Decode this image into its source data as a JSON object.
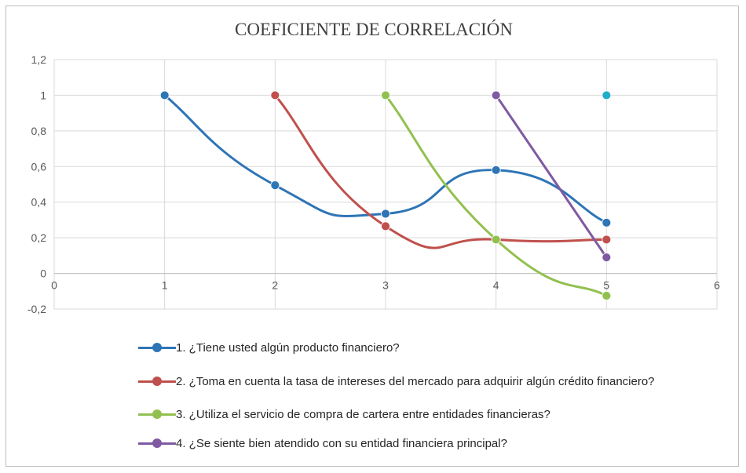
{
  "chart_data": {
    "type": "line",
    "title": "COEFICIENTE DE CORRELACIÓN",
    "xlim": [
      0,
      6
    ],
    "ylim": [
      -0.2,
      1.2
    ],
    "x_ticks": [
      0,
      1,
      2,
      3,
      4,
      5,
      6
    ],
    "y_ticks": [
      -0.2,
      0,
      0.2,
      0.4,
      0.6,
      0.8,
      1,
      1.2
    ],
    "x_tick_labels": [
      "0",
      "1",
      "2",
      "3",
      "4",
      "5",
      "6"
    ],
    "y_tick_labels": [
      "-0,2",
      "0",
      "0,2",
      "0,4",
      "0,6",
      "0,8",
      "1",
      "1,2"
    ],
    "grid": true,
    "smooth": true,
    "legend_position": "bottom",
    "series": [
      {
        "name": "1. ¿Tiene usted algún producto financiero?",
        "color": "#2e75b6",
        "x": [
          1,
          2,
          3,
          4,
          5
        ],
        "y": [
          1,
          0.495,
          0.335,
          0.58,
          0.285
        ]
      },
      {
        "name": "2. ¿Toma en cuenta la tasa de intereses del mercado para adquirir algún crédito financiero?",
        "color": "#c0504d",
        "x": [
          2,
          3,
          4,
          5
        ],
        "y": [
          1,
          0.265,
          0.19,
          0.19
        ]
      },
      {
        "name": "3. ¿Utiliza el servicio de compra de cartera entre entidades financieras?",
        "color": "#92c050",
        "x": [
          3,
          4,
          5
        ],
        "y": [
          1,
          0.19,
          -0.125
        ]
      },
      {
        "name": "4. ¿Se siente bien atendido con su entidad financiera principal?",
        "color": "#7f5aa2",
        "x": [
          4,
          5
        ],
        "y": [
          1,
          0.09
        ]
      },
      {
        "color": "#20aec8",
        "x": [
          5
        ],
        "y": [
          1
        ]
      }
    ]
  }
}
